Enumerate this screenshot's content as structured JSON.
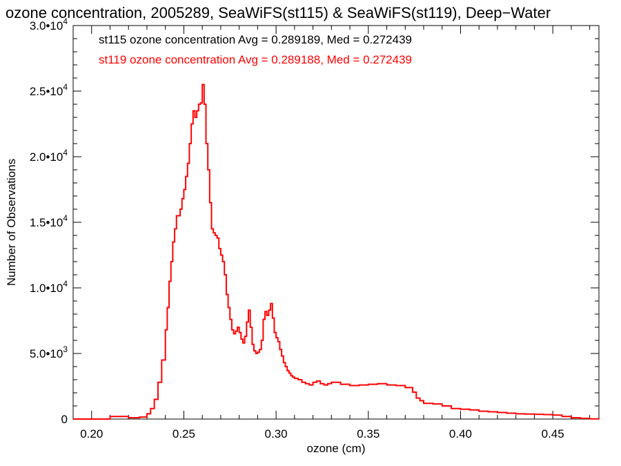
{
  "chart_data": {
    "type": "line",
    "title": "ozone concentration, 2005289, SeaWiFS(st115) & SeaWiFS(st119), Deep−Water",
    "xlabel": "ozone (cm)",
    "ylabel": "Number of Observations",
    "xlim": [
      0.19,
      0.475
    ],
    "ylim": [
      0,
      30000
    ],
    "x_ticks": [
      {
        "value": 0.2,
        "label": "0.20"
      },
      {
        "value": 0.25,
        "label": "0.25"
      },
      {
        "value": 0.3,
        "label": "0.30"
      },
      {
        "value": 0.35,
        "label": "0.35"
      },
      {
        "value": 0.4,
        "label": "0.40"
      },
      {
        "value": 0.45,
        "label": "0.45"
      }
    ],
    "y_ticks": [
      {
        "value": 0,
        "mant": "0",
        "exp": ""
      },
      {
        "value": 5000,
        "mant": "5.0•10",
        "exp": "3"
      },
      {
        "value": 10000,
        "mant": "1.0•10",
        "exp": "4"
      },
      {
        "value": 15000,
        "mant": "1.5•10",
        "exp": "4"
      },
      {
        "value": 20000,
        "mant": "2.0•10",
        "exp": "4"
      },
      {
        "value": 25000,
        "mant": "2.5•10",
        "exp": "4"
      },
      {
        "value": 30000,
        "mant": "3.0•10",
        "exp": "4"
      }
    ],
    "grid": false,
    "legend_position": "top-left",
    "annotations": [
      {
        "text": "st115 ozone concentration Avg = 0.289189, Med = 0.272439",
        "color": "#000000"
      },
      {
        "text": "st119 ozone concentration Avg = 0.289188, Med = 0.272439",
        "color": "#ff0000"
      }
    ],
    "series": [
      {
        "color": "#ff0000",
        "x": [
          0.19,
          0.2,
          0.21,
          0.22,
          0.226,
          0.23,
          0.232,
          0.234,
          0.236,
          0.238,
          0.24,
          0.241,
          0.242,
          0.243,
          0.244,
          0.245,
          0.246,
          0.247,
          0.248,
          0.249,
          0.25,
          0.251,
          0.252,
          0.253,
          0.254,
          0.255,
          0.256,
          0.257,
          0.258,
          0.259,
          0.26,
          0.261,
          0.262,
          0.263,
          0.264,
          0.265,
          0.266,
          0.267,
          0.268,
          0.269,
          0.27,
          0.271,
          0.272,
          0.273,
          0.274,
          0.275,
          0.276,
          0.277,
          0.278,
          0.279,
          0.28,
          0.281,
          0.282,
          0.283,
          0.284,
          0.285,
          0.286,
          0.287,
          0.288,
          0.289,
          0.29,
          0.291,
          0.292,
          0.293,
          0.294,
          0.295,
          0.296,
          0.297,
          0.298,
          0.299,
          0.3,
          0.301,
          0.302,
          0.303,
          0.304,
          0.305,
          0.306,
          0.307,
          0.308,
          0.309,
          0.31,
          0.312,
          0.314,
          0.316,
          0.318,
          0.32,
          0.322,
          0.324,
          0.326,
          0.328,
          0.33,
          0.335,
          0.34,
          0.345,
          0.35,
          0.355,
          0.36,
          0.365,
          0.37,
          0.374,
          0.376,
          0.378,
          0.38,
          0.385,
          0.39,
          0.395,
          0.4,
          0.405,
          0.41,
          0.415,
          0.42,
          0.425,
          0.43,
          0.435,
          0.44,
          0.445,
          0.45,
          0.455,
          0.46,
          0.465,
          0.47,
          0.475
        ],
        "y": [
          0,
          0,
          200,
          100,
          150,
          400,
          800,
          1500,
          2800,
          4500,
          6800,
          8500,
          10500,
          12000,
          13500,
          14500,
          15500,
          15500,
          16000,
          16800,
          17500,
          18500,
          19500,
          21000,
          22500,
          23500,
          23000,
          23500,
          24000,
          24100,
          25500,
          24000,
          21000,
          19000,
          16500,
          14500,
          14200,
          14000,
          13800,
          13000,
          12500,
          12000,
          11000,
          9500,
          8500,
          7600,
          6800,
          6500,
          6700,
          7000,
          6600,
          6100,
          5800,
          6300,
          7400,
          8300,
          7000,
          5700,
          5200,
          5000,
          5100,
          5300,
          6000,
          7600,
          8200,
          7900,
          8300,
          8800,
          7700,
          6600,
          6200,
          5900,
          5300,
          4800,
          4300,
          4000,
          3700,
          3500,
          3300,
          3200,
          3100,
          3000,
          2800,
          2700,
          2600,
          2800,
          2900,
          2700,
          2600,
          2700,
          2800,
          2650,
          2550,
          2600,
          2650,
          2700,
          2600,
          2550,
          2400,
          2050,
          1600,
          1400,
          1200,
          1150,
          1000,
          800,
          750,
          700,
          600,
          550,
          500,
          450,
          400,
          380,
          360,
          340,
          300,
          200,
          100,
          50,
          10,
          0
        ]
      }
    ]
  }
}
